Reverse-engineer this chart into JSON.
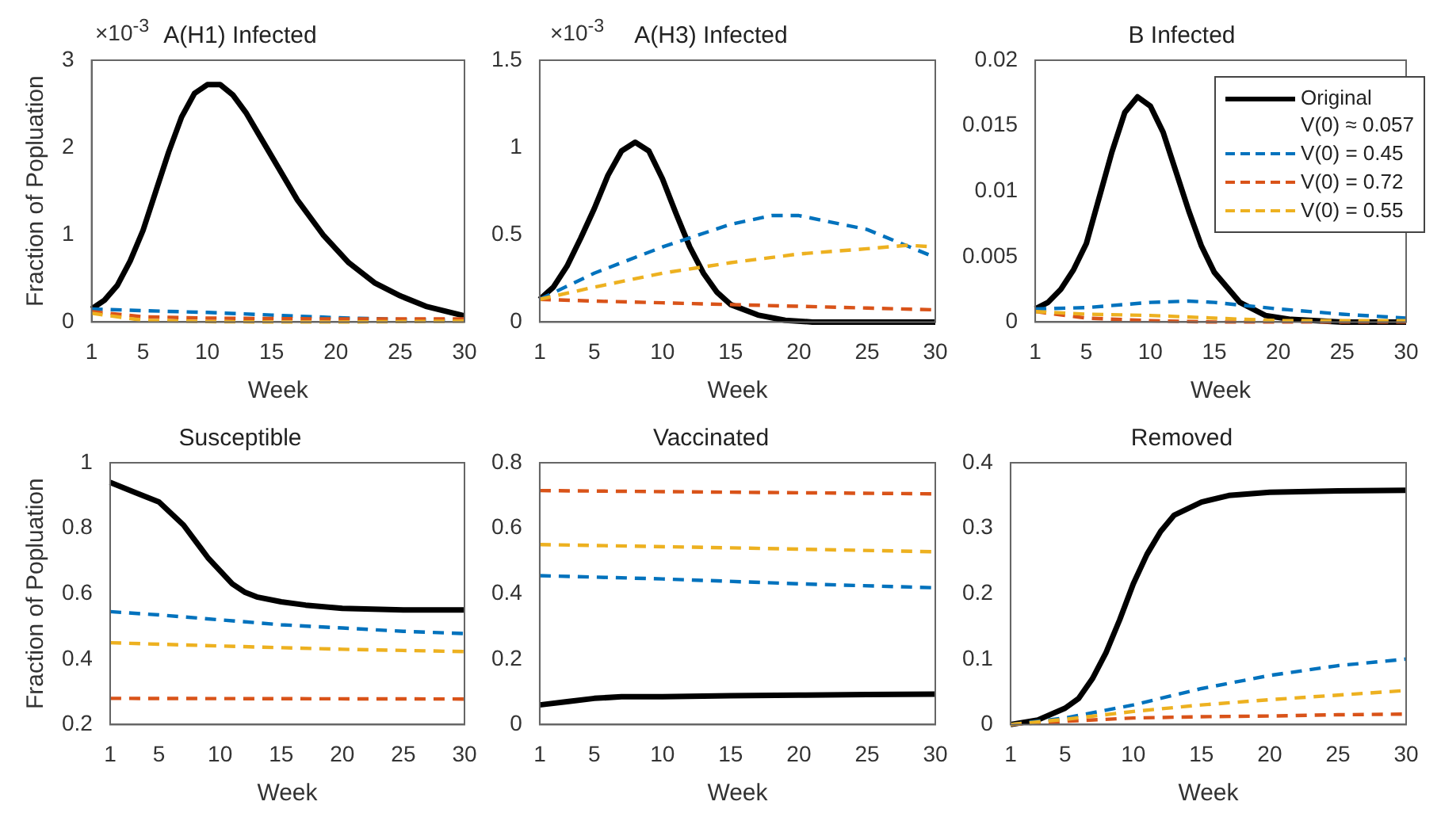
{
  "chart_data": [
    {
      "type": "line",
      "title": "A(H1) Infected",
      "xlabel": "Week",
      "ylabel": "Fraction of Popluation",
      "annotations": [
        "×10$^{-3}$"
      ],
      "xlim": [
        1,
        30
      ],
      "xticks": [
        1,
        5,
        10,
        15,
        20,
        25,
        30
      ],
      "ylim": [
        0,
        3
      ],
      "yticks": [
        0,
        1,
        2,
        3
      ],
      "grid": false,
      "legend": false,
      "series": [
        {
          "color": "#000000",
          "line_style": "solid",
          "x": [
            1,
            2,
            3,
            4,
            5,
            6,
            7,
            8,
            9,
            10,
            11,
            12,
            13,
            14,
            15,
            17,
            19,
            21,
            23,
            25,
            27,
            30
          ],
          "values": [
            0.15,
            0.25,
            0.42,
            0.7,
            1.05,
            1.5,
            1.95,
            2.35,
            2.62,
            2.72,
            2.72,
            2.6,
            2.4,
            2.15,
            1.9,
            1.4,
            1.0,
            0.68,
            0.45,
            0.3,
            0.18,
            0.07
          ]
        },
        {
          "color": "#0072bd",
          "line_style": "dashed",
          "x": [
            1,
            5,
            10,
            15,
            20,
            25,
            30
          ],
          "values": [
            0.15,
            0.13,
            0.11,
            0.08,
            0.05,
            0.03,
            0.02
          ]
        },
        {
          "color": "#d95319",
          "line_style": "dashed",
          "x": [
            1,
            5,
            10,
            15,
            20,
            25,
            30
          ],
          "values": [
            0.12,
            0.06,
            0.045,
            0.04,
            0.035,
            0.035,
            0.035
          ]
        },
        {
          "color": "#edb120",
          "line_style": "dashed",
          "x": [
            1,
            5,
            10,
            15,
            20,
            25,
            30
          ],
          "values": [
            0.1,
            0.02,
            0.005,
            0.0,
            0.0,
            0.005,
            0.01
          ]
        }
      ]
    },
    {
      "type": "line",
      "title": "A(H3) Infected",
      "xlabel": "Week",
      "annotations": [
        "×10$^{-3}$"
      ],
      "xlim": [
        1,
        30
      ],
      "xticks": [
        1,
        5,
        10,
        15,
        20,
        25,
        30
      ],
      "ylim": [
        0,
        1.5
      ],
      "yticks": [
        0,
        0.5,
        1,
        1.5
      ],
      "grid": false,
      "legend": false,
      "series": [
        {
          "color": "#000000",
          "line_style": "solid",
          "x": [
            1,
            2,
            3,
            4,
            5,
            6,
            7,
            8,
            9,
            10,
            11,
            12,
            13,
            14,
            15,
            17,
            19,
            21,
            23,
            25,
            27,
            30
          ],
          "values": [
            0.13,
            0.2,
            0.32,
            0.48,
            0.65,
            0.84,
            0.98,
            1.03,
            0.98,
            0.82,
            0.62,
            0.43,
            0.28,
            0.17,
            0.1,
            0.04,
            0.01,
            0,
            0,
            0,
            0,
            0
          ]
        },
        {
          "color": "#0072bd",
          "line_style": "dashed",
          "x": [
            1,
            5,
            10,
            15,
            18,
            20,
            25,
            30
          ],
          "values": [
            0.13,
            0.28,
            0.43,
            0.56,
            0.61,
            0.61,
            0.53,
            0.37
          ]
        },
        {
          "color": "#d95319",
          "line_style": "dashed",
          "x": [
            1,
            5,
            10,
            15,
            20,
            25,
            30
          ],
          "values": [
            0.13,
            0.12,
            0.11,
            0.1,
            0.09,
            0.08,
            0.07
          ]
        },
        {
          "color": "#edb120",
          "line_style": "dashed",
          "x": [
            1,
            5,
            10,
            15,
            20,
            25,
            28,
            30
          ],
          "values": [
            0.13,
            0.2,
            0.28,
            0.34,
            0.39,
            0.42,
            0.44,
            0.43
          ]
        }
      ]
    },
    {
      "type": "line",
      "title": "B Infected",
      "xlabel": "Week",
      "xlim": [
        1,
        30
      ],
      "xticks": [
        1,
        5,
        10,
        15,
        20,
        25,
        30
      ],
      "ylim": [
        0,
        0.02
      ],
      "yticks": [
        0,
        0.005,
        0.01,
        0.015,
        0.02
      ],
      "grid": false,
      "legend": "top right",
      "series": [
        {
          "name": "Original\nV(0)  ≈ 0.057",
          "color": "#000000",
          "line_style": "solid",
          "x": [
            1,
            2,
            3,
            4,
            5,
            6,
            7,
            8,
            9,
            10,
            11,
            12,
            13,
            14,
            15,
            17,
            19,
            21,
            23,
            25,
            27,
            30
          ],
          "values": [
            0.001,
            0.0015,
            0.0025,
            0.004,
            0.006,
            0.0095,
            0.013,
            0.016,
            0.0172,
            0.0165,
            0.0145,
            0.0115,
            0.0085,
            0.0058,
            0.0038,
            0.0015,
            0.0005,
            0.0002,
            0.0001,
            0,
            0,
            0
          ]
        },
        {
          "name": "V(0) = 0.45",
          "color": "#0072bd",
          "line_style": "dashed",
          "x": [
            1,
            5,
            10,
            13,
            15,
            20,
            25,
            30
          ],
          "values": [
            0.001,
            0.0011,
            0.0015,
            0.0016,
            0.0015,
            0.001,
            0.0006,
            0.0003
          ]
        },
        {
          "name": "V(0) = 0.72",
          "color": "#d95319",
          "line_style": "dashed",
          "x": [
            1,
            5,
            10,
            15,
            20,
            25,
            30
          ],
          "values": [
            0.0008,
            0.0003,
            0.0001,
            0,
            0,
            0,
            0
          ]
        },
        {
          "name": "V(0) = 0.55",
          "color": "#edb120",
          "line_style": "dashed",
          "x": [
            1,
            5,
            10,
            15,
            20,
            25,
            30
          ],
          "values": [
            0.0008,
            0.0006,
            0.0005,
            0.0003,
            0.0001,
            0.0001,
            0.0001
          ]
        }
      ]
    },
    {
      "type": "line",
      "title": "Susceptible",
      "xlabel": "Week",
      "ylabel": "Fraction of Popluation",
      "xlim": [
        1,
        30
      ],
      "xticks": [
        1,
        5,
        10,
        15,
        20,
        25,
        30
      ],
      "ylim": [
        0.2,
        1
      ],
      "yticks": [
        0.2,
        0.4,
        0.6,
        0.8,
        1
      ],
      "grid": false,
      "legend": false,
      "series": [
        {
          "color": "#000000",
          "line_style": "solid",
          "x": [
            1,
            3,
            5,
            7,
            8,
            9,
            10,
            11,
            12,
            13,
            15,
            17,
            20,
            25,
            30
          ],
          "values": [
            0.94,
            0.91,
            0.88,
            0.81,
            0.76,
            0.71,
            0.67,
            0.63,
            0.605,
            0.59,
            0.575,
            0.565,
            0.555,
            0.55,
            0.55
          ]
        },
        {
          "color": "#0072bd",
          "line_style": "dashed",
          "x": [
            1,
            5,
            10,
            15,
            20,
            25,
            30
          ],
          "values": [
            0.545,
            0.535,
            0.52,
            0.505,
            0.495,
            0.485,
            0.478
          ]
        },
        {
          "color": "#d95319",
          "line_style": "dashed",
          "x": [
            1,
            15,
            30
          ],
          "values": [
            0.28,
            0.279,
            0.278
          ]
        },
        {
          "color": "#edb120",
          "line_style": "dashed",
          "x": [
            1,
            10,
            20,
            30
          ],
          "values": [
            0.45,
            0.44,
            0.43,
            0.423
          ]
        }
      ]
    },
    {
      "type": "line",
      "title": "Vaccinated",
      "xlabel": "Week",
      "xlim": [
        1,
        30
      ],
      "xticks": [
        1,
        5,
        10,
        15,
        20,
        25,
        30
      ],
      "ylim": [
        0,
        0.8
      ],
      "yticks": [
        0,
        0.2,
        0.4,
        0.6,
        0.8
      ],
      "grid": false,
      "legend": false,
      "series": [
        {
          "color": "#000000",
          "line_style": "solid",
          "x": [
            1,
            3,
            5,
            7,
            10,
            15,
            20,
            25,
            30
          ],
          "values": [
            0.06,
            0.07,
            0.08,
            0.085,
            0.085,
            0.088,
            0.09,
            0.092,
            0.093
          ]
        },
        {
          "color": "#0072bd",
          "line_style": "dashed",
          "x": [
            1,
            10,
            20,
            30
          ],
          "values": [
            0.455,
            0.445,
            0.43,
            0.418
          ]
        },
        {
          "color": "#d95319",
          "line_style": "dashed",
          "x": [
            1,
            15,
            30
          ],
          "values": [
            0.715,
            0.71,
            0.705
          ]
        },
        {
          "color": "#edb120",
          "line_style": "dashed",
          "x": [
            1,
            15,
            30
          ],
          "values": [
            0.55,
            0.54,
            0.528
          ]
        }
      ]
    },
    {
      "type": "line",
      "title": "Removed",
      "xlabel": "Week",
      "xlim": [
        1,
        30
      ],
      "xticks": [
        1,
        5,
        10,
        15,
        20,
        25,
        30
      ],
      "ylim": [
        0,
        0.4
      ],
      "yticks": [
        0,
        0.1,
        0.2,
        0.3,
        0.4
      ],
      "grid": false,
      "legend": false,
      "series": [
        {
          "color": "#000000",
          "line_style": "solid",
          "x": [
            1,
            3,
            5,
            6,
            7,
            8,
            9,
            10,
            11,
            12,
            13,
            15,
            17,
            20,
            25,
            30
          ],
          "values": [
            0,
            0.007,
            0.025,
            0.04,
            0.07,
            0.11,
            0.16,
            0.215,
            0.26,
            0.295,
            0.32,
            0.34,
            0.35,
            0.355,
            0.357,
            0.358
          ]
        },
        {
          "color": "#0072bd",
          "line_style": "dashed",
          "x": [
            1,
            5,
            10,
            15,
            20,
            25,
            30
          ],
          "values": [
            0,
            0.01,
            0.03,
            0.055,
            0.075,
            0.09,
            0.1
          ]
        },
        {
          "color": "#d95319",
          "line_style": "dashed",
          "x": [
            1,
            5,
            10,
            15,
            20,
            25,
            30
          ],
          "values": [
            0,
            0.005,
            0.01,
            0.012,
            0.013,
            0.015,
            0.016
          ]
        },
        {
          "color": "#edb120",
          "line_style": "dashed",
          "x": [
            1,
            5,
            10,
            15,
            20,
            25,
            30
          ],
          "values": [
            0,
            0.008,
            0.02,
            0.03,
            0.038,
            0.045,
            0.052
          ]
        }
      ]
    }
  ]
}
